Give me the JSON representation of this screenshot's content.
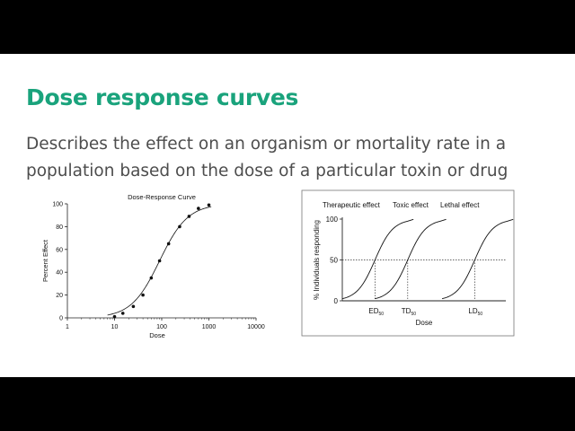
{
  "slide": {
    "title": "Dose response curves",
    "description_lines": [
      "Describes the effect on an organism or mortality rate in a",
      "population based on the dose of a particular toxin or drug"
    ]
  },
  "colors": {
    "title": "#1aa37c",
    "text": "#4d4d4d",
    "background": "#ffffff",
    "letterbox": "#000000"
  },
  "chart_data": [
    {
      "type": "scatter",
      "title": "Dose-Response Curve",
      "xlabel": "Dose",
      "ylabel": "Percent Effect",
      "xscale": "log",
      "xlim": [
        1,
        10000
      ],
      "ylim": [
        0,
        100
      ],
      "xticks": [
        1,
        10,
        100,
        1000,
        10000
      ],
      "xtick_labels": [
        "1",
        "10",
        "100",
        "1000",
        "10000"
      ],
      "yticks": [
        0,
        20,
        40,
        60,
        80,
        100
      ],
      "ytick_labels": [
        "0",
        "20",
        "40",
        "60",
        "80",
        "100"
      ],
      "grid": false,
      "fit_line": true,
      "x": [
        10,
        15,
        25,
        40,
        60,
        90,
        140,
        240,
        380,
        600,
        1000
      ],
      "y": [
        1,
        4,
        10,
        20,
        35,
        50,
        65,
        80,
        89,
        96,
        99
      ]
    },
    {
      "type": "line",
      "xlabel": "Dose",
      "ylabel": "% Individuals responding",
      "yticks": [
        0,
        50,
        100
      ],
      "ytick_labels": [
        "0",
        "50",
        "100"
      ],
      "ylim": [
        0,
        100
      ],
      "reference_line": 50,
      "grid": false,
      "series": [
        {
          "name": "Therapeutic effect",
          "marker_label": "ED",
          "marker_sub": "50",
          "midpoint": 0.2
        },
        {
          "name": "Toxic effect",
          "marker_label": "TD",
          "marker_sub": "50",
          "midpoint": 0.4
        },
        {
          "name": "Lethal effect",
          "marker_label": "LD",
          "marker_sub": "50",
          "midpoint": 0.81
        }
      ]
    }
  ]
}
